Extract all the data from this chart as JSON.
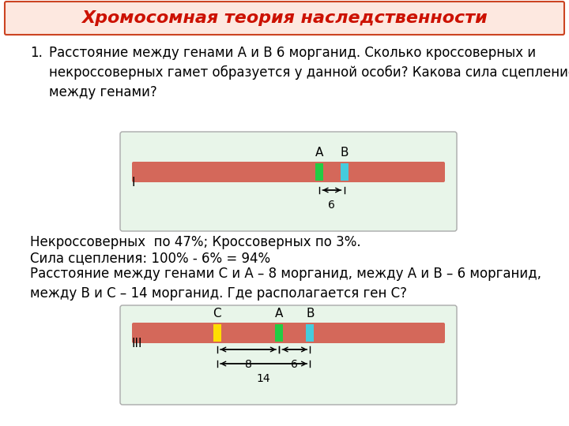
{
  "title": "Хромосомная теория наследственности",
  "title_color": "#cc1100",
  "title_bg": "#fde8e0",
  "title_border": "#cc4422",
  "bg_color": "#ffffff",
  "question_number": "1.",
  "question_text": "Расстояние между генами А и В 6 морганид. Сколько кроссоверных и\nнекроссоверных гамет образуется у данной особи? Какова сила сцепление\nмежду генами?",
  "diagram1_bg": "#e8f5e9",
  "diagram1_border": "#aaaaaa",
  "chrom_color": "#d4685a",
  "gene_A_color": "#22cc44",
  "gene_B_color": "#44ccdd",
  "gene_C_color": "#ffdd00",
  "label_I": "I",
  "label_A1": "A",
  "label_B1": "B",
  "answer1": "Некроссоверных  по 47%; Кроссоверных по 3%.",
  "answer2": "Сила сцепления: 100% - 6% = 94%",
  "answer3": "Расстояние между генами С и А – 8 морганид, между А и В – 6 морганид,\nмежду В и С – 14 морганид. Где располагается ген С?",
  "diagram2_bg": "#e8f5e9",
  "diagram2_border": "#aaaaaa",
  "label_III": "III",
  "label_C2": "C",
  "label_A2": "A",
  "label_B2": "B",
  "font_size_title": 16,
  "font_size_body": 12,
  "font_size_label": 11,
  "font_size_small": 10
}
